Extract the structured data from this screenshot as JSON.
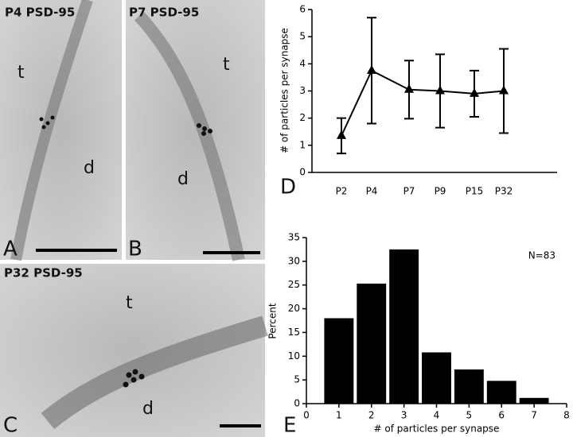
{
  "panels": [
    {
      "title": "P4 PSD-95",
      "tags": [
        "t",
        "d"
      ],
      "label": "A"
    },
    {
      "title": "P7 PSD-95",
      "tags": [
        "t",
        "d"
      ],
      "label": "B"
    },
    {
      "title": "P32 PSD-95",
      "tags": [
        "t",
        "d"
      ],
      "label": "C"
    }
  ],
  "chart_data": [
    {
      "type": "line",
      "panel_label": "D",
      "y_label": "# of particles per synapse",
      "categories": [
        "P2",
        "P4",
        "P7",
        "P9",
        "P15",
        "P32"
      ],
      "values": [
        1.35,
        3.75,
        3.05,
        3.0,
        2.9,
        3.0
      ],
      "errors": [
        0.65,
        1.95,
        1.07,
        1.35,
        0.85,
        1.55
      ],
      "color": "#000000",
      "ylim": [
        0,
        6
      ],
      "yticks": [
        0,
        1,
        2,
        3,
        4,
        5,
        6
      ]
    },
    {
      "type": "histogram",
      "panel_label": "E",
      "x_label": "# of particles per synapse",
      "y_label": "Percent",
      "annotation": "N=83",
      "bins": [
        0.5,
        1.5,
        2.5,
        3.5,
        4.5,
        5.5,
        6.5,
        7.5
      ],
      "values": [
        18,
        25.3,
        32.5,
        10.8,
        7.2,
        4.8,
        1.2
      ],
      "color": "#000000",
      "xlim": [
        0,
        8
      ],
      "xticks": [
        0,
        1,
        2,
        3,
        4,
        5,
        6,
        7,
        8
      ],
      "ylim": [
        0,
        35
      ],
      "yticks": [
        0,
        5,
        10,
        15,
        20,
        25,
        30,
        35
      ]
    }
  ]
}
